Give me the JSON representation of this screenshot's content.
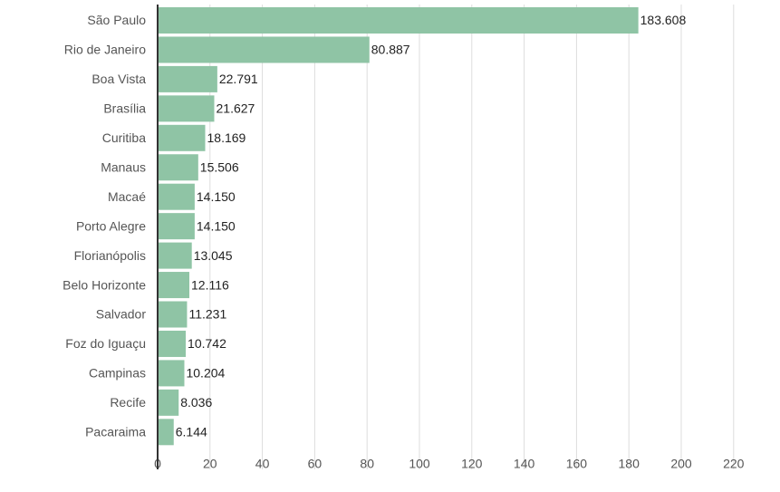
{
  "chart_data": {
    "type": "bar",
    "orientation": "horizontal",
    "categories": [
      "São Paulo",
      "Rio de Janeiro",
      "Boa Vista",
      "Brasília",
      "Curitiba",
      "Manaus",
      "Macaé",
      "Porto Alegre",
      "Florianópolis",
      "Belo Horizonte",
      "Salvador",
      "Foz do Iguaçu",
      "Campinas",
      "Recife",
      "Pacaraima"
    ],
    "values": [
      183.608,
      80.887,
      22.791,
      21.627,
      18.169,
      15.506,
      14.15,
      14.15,
      13.045,
      12.116,
      11.231,
      10.742,
      10.204,
      8.036,
      6.144
    ],
    "value_labels": [
      "183.608",
      "80.887",
      "22.791",
      "21.627",
      "18.169",
      "15.506",
      "14.150",
      "14.150",
      "13.045",
      "12.116",
      "11.231",
      "10.742",
      "10.204",
      "8.036",
      "6.144"
    ],
    "xlim": [
      0,
      220
    ],
    "xticks": [
      0,
      20,
      40,
      60,
      80,
      100,
      120,
      140,
      160,
      180,
      200,
      220
    ],
    "xtick_labels": [
      "0",
      "20",
      "40",
      "60",
      "80",
      "100",
      "120",
      "140",
      "160",
      "180",
      "200",
      "220"
    ],
    "title": "",
    "xlabel": "",
    "ylabel": "",
    "grid": "vertical",
    "bar_color": "#8fc4a5",
    "grid_color": "#dddddd",
    "axis_color": "#333333"
  }
}
